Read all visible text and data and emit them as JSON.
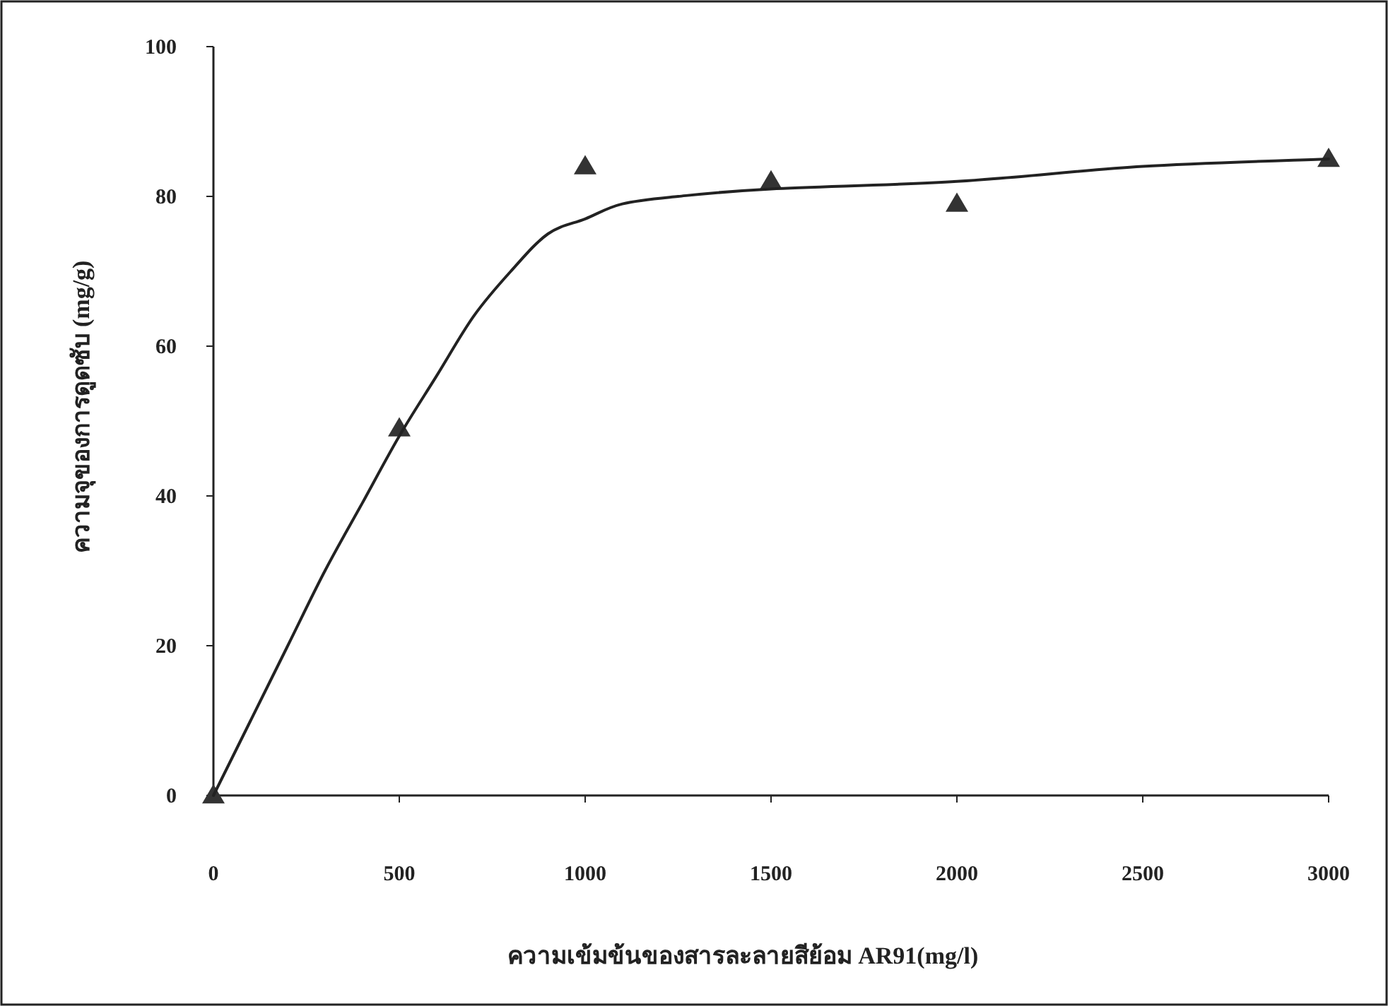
{
  "chart_data": {
    "type": "scatter",
    "xlabel": "ความเข้มข้นของสารละลายสีย้อม AR91(mg/l)",
    "ylabel": "ความจุของการดูดซับ (mg/g)",
    "xlim": [
      0,
      3000
    ],
    "ylim": [
      0,
      100
    ],
    "xticks": [
      0,
      500,
      1000,
      1500,
      2000,
      2500,
      3000
    ],
    "yticks": [
      0,
      20,
      40,
      60,
      80,
      100
    ],
    "series": [
      {
        "marker": "triangle",
        "color": "#333333",
        "x": [
          0,
          500,
          1000,
          1500,
          2000,
          3000
        ],
        "values": [
          0,
          49,
          84,
          82,
          79,
          85
        ]
      },
      {
        "type": "line",
        "marker": "none",
        "color": "#222222",
        "x": [
          0,
          100,
          200,
          300,
          400,
          500,
          600,
          700,
          800,
          900,
          1000,
          1100,
          1250,
          1500,
          2000,
          2500,
          3000
        ],
        "values": [
          0,
          10,
          20,
          30,
          39,
          48,
          56,
          64,
          70,
          75,
          77,
          79,
          80,
          81,
          82,
          84,
          85
        ]
      }
    ]
  }
}
